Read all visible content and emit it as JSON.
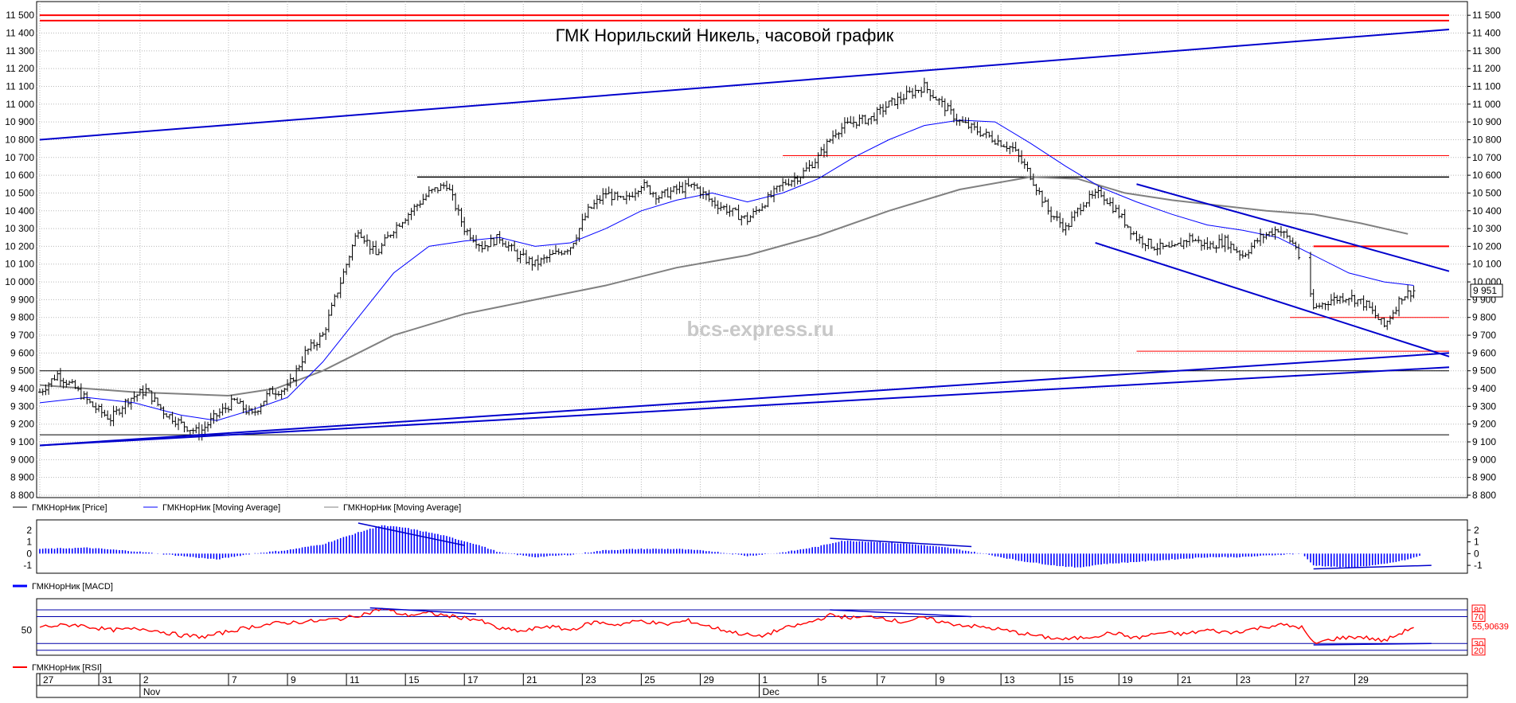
{
  "colors": {
    "background": "#ffffff",
    "grid": "#b8b8b8",
    "price": "#000000",
    "ma_fast": "#0000ff",
    "ma_slow": "#808080",
    "trend_blue": "#0000cc",
    "level_red": "#ff0000",
    "level_black": "#000000",
    "macd": "#0000ff",
    "rsi": "#ff0000",
    "rsi_bands": "#0000aa"
  },
  "chart_data": [
    {
      "type": "candlestick",
      "title": "ГМК Норильский Никель, часовой график",
      "watermark": "bcs-express.ru",
      "ylim": [
        8800,
        11550
      ],
      "y_ticks": [
        "8 800",
        "8 900",
        "9 000",
        "9 100",
        "9 200",
        "9 300",
        "9 400",
        "9 500",
        "9 600",
        "9 700",
        "9 800",
        "9 900",
        "10 000",
        "10 100",
        "10 200",
        "10 300",
        "10 400",
        "10 500",
        "10 600",
        "10 700",
        "10 800",
        "10 900",
        "11 000",
        "11 100",
        "11 200",
        "11 300",
        "11 400",
        "11 500"
      ],
      "y_tick_values": [
        8800,
        8900,
        9000,
        9100,
        9200,
        9300,
        9400,
        9500,
        9600,
        9700,
        9800,
        9900,
        10000,
        10100,
        10200,
        10300,
        10400,
        10500,
        10600,
        10700,
        10800,
        10900,
        11000,
        11100,
        11200,
        11300,
        11400,
        11500
      ],
      "last_price_label": "9 951",
      "last_price": 9951,
      "grid": true,
      "price_path": [
        [
          0,
          9380
        ],
        [
          1.5,
          9480
        ],
        [
          3,
          9400
        ],
        [
          4.5,
          9300
        ],
        [
          6,
          9230
        ],
        [
          7.5,
          9340
        ],
        [
          9,
          9390
        ],
        [
          10.5,
          9270
        ],
        [
          12,
          9200
        ],
        [
          13.5,
          9150
        ],
        [
          15,
          9250
        ],
        [
          16.5,
          9330
        ],
        [
          18,
          9250
        ],
        [
          19.5,
          9380
        ],
        [
          21,
          9400
        ],
        [
          22.5,
          9600
        ],
        [
          24,
          9700
        ],
        [
          25.5,
          10000
        ],
        [
          27,
          10300
        ],
        [
          28.5,
          10150
        ],
        [
          30,
          10300
        ],
        [
          31.5,
          10400
        ],
        [
          33,
          10500
        ],
        [
          34.5,
          10550
        ],
        [
          36,
          10300
        ],
        [
          37.5,
          10200
        ],
        [
          39,
          10250
        ],
        [
          40.5,
          10150
        ],
        [
          42,
          10100
        ],
        [
          43.5,
          10150
        ],
        [
          45,
          10200
        ],
        [
          46.5,
          10400
        ],
        [
          48,
          10500
        ],
        [
          49.5,
          10450
        ],
        [
          51,
          10550
        ],
        [
          52.5,
          10480
        ],
        [
          54,
          10520
        ],
        [
          55.5,
          10540
        ],
        [
          57,
          10450
        ],
        [
          58.5,
          10400
        ],
        [
          60,
          10350
        ],
        [
          61.5,
          10450
        ],
        [
          63,
          10550
        ],
        [
          64.5,
          10600
        ],
        [
          66,
          10700
        ],
        [
          67.5,
          10850
        ],
        [
          69,
          10900
        ],
        [
          70.5,
          10920
        ],
        [
          72,
          11000
        ],
        [
          73.5,
          11050
        ],
        [
          75,
          11100
        ],
        [
          76.5,
          11000
        ],
        [
          78,
          10900
        ],
        [
          79.5,
          10850
        ],
        [
          81,
          10800
        ],
        [
          82.5,
          10750
        ],
        [
          84,
          10600
        ],
        [
          85.5,
          10400
        ],
        [
          87,
          10300
        ],
        [
          88.5,
          10450
        ],
        [
          90,
          10500
        ],
        [
          91.5,
          10380
        ],
        [
          93,
          10250
        ],
        [
          94.5,
          10200
        ],
        [
          96,
          10180
        ],
        [
          97.5,
          10250
        ],
        [
          99,
          10200
        ],
        [
          100.5,
          10230
        ],
        [
          102,
          10150
        ],
        [
          103.5,
          10250
        ],
        [
          105,
          10300
        ],
        [
          106.5,
          10200
        ],
        [
          108,
          9850
        ],
        [
          109.5,
          9900
        ],
        [
          111,
          9920
        ],
        [
          112.5,
          9870
        ],
        [
          114,
          9750
        ],
        [
          115.5,
          9920
        ],
        [
          116.5,
          9951
        ]
      ],
      "ma_fast_path": [
        [
          0,
          9320
        ],
        [
          4,
          9350
        ],
        [
          8,
          9320
        ],
        [
          12,
          9250
        ],
        [
          15,
          9220
        ],
        [
          18,
          9280
        ],
        [
          21,
          9350
        ],
        [
          24,
          9550
        ],
        [
          27,
          9800
        ],
        [
          30,
          10050
        ],
        [
          33,
          10200
        ],
        [
          36,
          10230
        ],
        [
          39,
          10250
        ],
        [
          42,
          10200
        ],
        [
          45,
          10220
        ],
        [
          48,
          10300
        ],
        [
          51,
          10400
        ],
        [
          54,
          10460
        ],
        [
          57,
          10500
        ],
        [
          60,
          10450
        ],
        [
          63,
          10500
        ],
        [
          66,
          10580
        ],
        [
          69,
          10700
        ],
        [
          72,
          10800
        ],
        [
          75,
          10880
        ],
        [
          78,
          10910
        ],
        [
          81,
          10900
        ],
        [
          84,
          10780
        ],
        [
          87,
          10650
        ],
        [
          90,
          10530
        ],
        [
          93,
          10450
        ],
        [
          96,
          10380
        ],
        [
          99,
          10320
        ],
        [
          102,
          10290
        ],
        [
          105,
          10250
        ],
        [
          108,
          10150
        ],
        [
          111,
          10050
        ],
        [
          114,
          10000
        ],
        [
          116.5,
          9980
        ]
      ],
      "ma_slow_path": [
        [
          0,
          9420
        ],
        [
          8,
          9380
        ],
        [
          16,
          9360
        ],
        [
          20,
          9400
        ],
        [
          24,
          9500
        ],
        [
          30,
          9700
        ],
        [
          36,
          9820
        ],
        [
          42,
          9900
        ],
        [
          48,
          9980
        ],
        [
          54,
          10080
        ],
        [
          60,
          10150
        ],
        [
          66,
          10260
        ],
        [
          72,
          10400
        ],
        [
          78,
          10520
        ],
        [
          84,
          10590
        ],
        [
          88,
          10580
        ],
        [
          92,
          10500
        ],
        [
          96,
          10460
        ],
        [
          100,
          10430
        ],
        [
          104,
          10400
        ],
        [
          108,
          10380
        ],
        [
          112,
          10330
        ],
        [
          116,
          10270
        ]
      ],
      "trend_lines": [
        [
          [
            0,
            10800
          ],
          [
            119.5,
            11420
          ]
        ],
        [
          [
            0,
            9080
          ],
          [
            119.5,
            9600
          ]
        ],
        [
          [
            0,
            9080
          ],
          [
            119.5,
            9520
          ]
        ],
        [
          [
            89.5,
            10220
          ],
          [
            119.5,
            9580
          ]
        ],
        [
          [
            93,
            10550
          ],
          [
            119.5,
            10060
          ]
        ]
      ],
      "levels": [
        {
          "y": 11500,
          "x0": 0,
          "x1": 119.5,
          "color": "level_red",
          "width": 2
        },
        {
          "y": 11470,
          "x0": 0,
          "x1": 119.5,
          "color": "level_red",
          "width": 2
        },
        {
          "y": 10710,
          "x0": 63,
          "x1": 119.5,
          "color": "level_red",
          "width": 1
        },
        {
          "y": 10590,
          "x0": 32,
          "x1": 119.5,
          "color": "level_black",
          "width": 1.5
        },
        {
          "y": 10200,
          "x0": 108,
          "x1": 119.5,
          "color": "level_red",
          "width": 2
        },
        {
          "y": 9800,
          "x0": 106,
          "x1": 119.5,
          "color": "level_red",
          "width": 1
        },
        {
          "y": 9610,
          "x0": 93,
          "x1": 119.5,
          "color": "level_red",
          "width": 1
        },
        {
          "y": 9500,
          "x0": 0,
          "x1": 119.5,
          "color": "level_black",
          "width": 1
        },
        {
          "y": 9140,
          "x0": 0,
          "x1": 119.5,
          "color": "level_black",
          "width": 1
        }
      ],
      "legend": [
        {
          "label": "ГМКНорНик [Price]",
          "color": "price"
        },
        {
          "label": "ГМКНорНик [Moving Average]",
          "color": "ma_fast"
        },
        {
          "label": "ГМКНорНик [Moving Average]",
          "color": "ma_slow"
        }
      ]
    },
    {
      "type": "bar",
      "name": "MACD",
      "legend": [
        {
          "label": "ГМКНорНик [MACD]",
          "color": "macd"
        }
      ],
      "ylim": [
        -1.4,
        2.6
      ],
      "y_ticks": [
        "2",
        "1",
        "0",
        "-1"
      ],
      "y_tick_values": [
        2,
        1,
        0,
        -1
      ],
      "profile": [
        [
          0,
          0.4
        ],
        [
          4,
          0.5
        ],
        [
          8,
          0.2
        ],
        [
          12,
          -0.2
        ],
        [
          15,
          -0.5
        ],
        [
          18,
          0
        ],
        [
          21,
          0.3
        ],
        [
          24,
          0.8
        ],
        [
          27,
          1.8
        ],
        [
          29,
          2.4
        ],
        [
          31,
          2.2
        ],
        [
          34,
          1.6
        ],
        [
          37,
          0.8
        ],
        [
          39,
          0.1
        ],
        [
          42,
          -0.3
        ],
        [
          45,
          -0.1
        ],
        [
          48,
          0.3
        ],
        [
          51,
          0.4
        ],
        [
          54,
          0.4
        ],
        [
          57,
          0.2
        ],
        [
          60,
          -0.2
        ],
        [
          63,
          0.1
        ],
        [
          66,
          0.6
        ],
        [
          68,
          1.1
        ],
        [
          71,
          1.0
        ],
        [
          74,
          0.8
        ],
        [
          77,
          0.5
        ],
        [
          80,
          0
        ],
        [
          83,
          -0.6
        ],
        [
          86,
          -1.0
        ],
        [
          88,
          -1.2
        ],
        [
          90,
          -0.9
        ],
        [
          93,
          -0.7
        ],
        [
          96,
          -0.5
        ],
        [
          99,
          -0.3
        ],
        [
          102,
          -0.3
        ],
        [
          105,
          -0.1
        ],
        [
          107,
          0
        ],
        [
          108,
          -1.0
        ],
        [
          111,
          -1.2
        ],
        [
          114,
          -0.9
        ],
        [
          116,
          -0.5
        ],
        [
          117,
          -0.2
        ]
      ],
      "divergence_lines": [
        [
          [
            27,
            2.6
          ],
          [
            36,
            0.7
          ]
        ],
        [
          [
            67,
            1.3
          ],
          [
            79,
            0.6
          ]
        ],
        [
          [
            108,
            -1.3
          ],
          [
            118,
            -1.0
          ]
        ]
      ]
    },
    {
      "type": "line",
      "name": "RSI",
      "legend": [
        {
          "label": "ГМКНорНик [RSI]",
          "color": "rsi"
        }
      ],
      "ylim": [
        15,
        93
      ],
      "y_ticks": [
        "50"
      ],
      "y_tick_values": [
        50
      ],
      "bands": [
        80,
        70,
        30,
        20
      ],
      "band_labels": [
        "80",
        "70",
        "30",
        "20"
      ],
      "last_value_label": "55,90639",
      "last_value": 55.90639,
      "profile": [
        [
          0,
          55
        ],
        [
          3,
          58
        ],
        [
          6,
          50
        ],
        [
          9,
          52
        ],
        [
          12,
          42
        ],
        [
          14,
          40
        ],
        [
          16,
          48
        ],
        [
          18,
          55
        ],
        [
          20,
          60
        ],
        [
          22,
          62
        ],
        [
          24,
          64
        ],
        [
          26,
          68
        ],
        [
          28,
          76
        ],
        [
          29,
          82
        ],
        [
          31,
          72
        ],
        [
          33,
          75
        ],
        [
          35,
          70
        ],
        [
          37,
          66
        ],
        [
          39,
          52
        ],
        [
          41,
          48
        ],
        [
          43,
          56
        ],
        [
          45,
          50
        ],
        [
          47,
          62
        ],
        [
          49,
          58
        ],
        [
          51,
          64
        ],
        [
          53,
          58
        ],
        [
          55,
          64
        ],
        [
          57,
          54
        ],
        [
          59,
          46
        ],
        [
          61,
          40
        ],
        [
          63,
          52
        ],
        [
          65,
          60
        ],
        [
          67,
          72
        ],
        [
          69,
          68
        ],
        [
          71,
          70
        ],
        [
          73,
          62
        ],
        [
          75,
          68
        ],
        [
          77,
          60
        ],
        [
          79,
          56
        ],
        [
          81,
          52
        ],
        [
          83,
          46
        ],
        [
          85,
          40
        ],
        [
          87,
          36
        ],
        [
          89,
          40
        ],
        [
          91,
          46
        ],
        [
          93,
          38
        ],
        [
          95,
          46
        ],
        [
          97,
          44
        ],
        [
          99,
          50
        ],
        [
          101,
          46
        ],
        [
          103,
          52
        ],
        [
          105,
          58
        ],
        [
          107,
          54
        ],
        [
          108,
          30
        ],
        [
          110,
          38
        ],
        [
          112,
          40
        ],
        [
          114,
          34
        ],
        [
          115,
          42
        ],
        [
          116.5,
          55
        ]
      ],
      "divergence_lines": [
        [
          [
            28,
            83
          ],
          [
            37,
            74
          ]
        ],
        [
          [
            67,
            80
          ],
          [
            79,
            70
          ]
        ],
        [
          [
            108,
            28
          ],
          [
            118,
            30
          ]
        ]
      ]
    }
  ],
  "x_axis": {
    "labels": [
      "27",
      "31",
      "2",
      "7",
      "9",
      "11",
      "15",
      "17",
      "21",
      "23",
      "25",
      "29",
      "1",
      "5",
      "7",
      "9",
      "13",
      "15",
      "19",
      "21",
      "23",
      "27",
      "29"
    ],
    "label_pos": [
      0,
      5,
      8.5,
      16,
      21,
      26,
      31,
      36,
      41,
      46,
      51,
      56,
      61,
      66,
      71,
      76,
      81.5,
      86.5,
      91.5,
      96.5,
      101.5,
      106.5,
      111.5
    ],
    "months": [
      "Nov",
      "Dec"
    ],
    "month_pos": [
      8.5,
      61
    ],
    "domain": [
      0,
      119.5
    ]
  }
}
